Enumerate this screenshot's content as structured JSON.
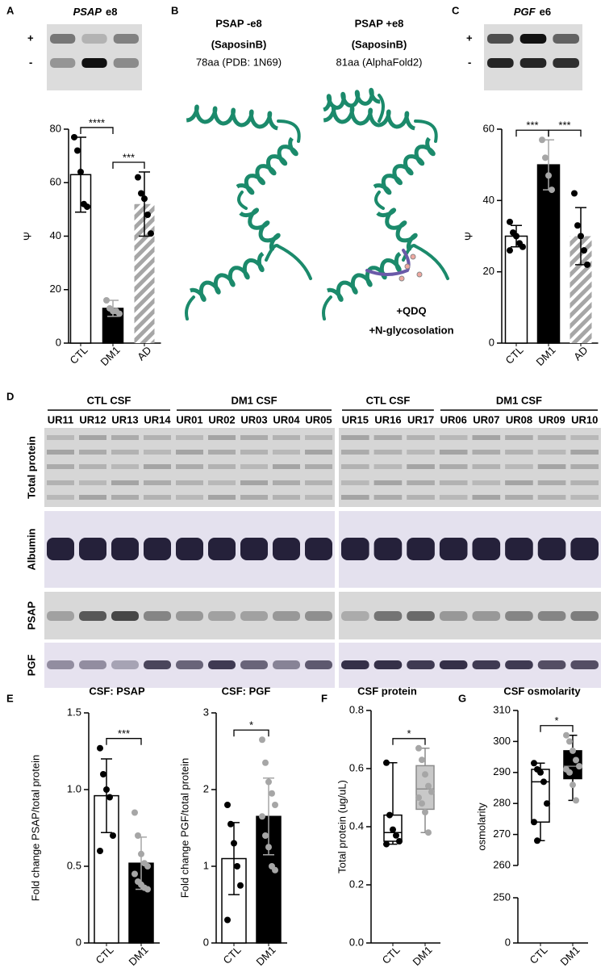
{
  "panel_letters": [
    "A",
    "B",
    "C",
    "D",
    "E",
    "F",
    "G"
  ],
  "gels": [
    {
      "gene": "PSAP",
      "exon": "e8",
      "labels": [
        "+",
        "-"
      ]
    },
    {
      "gene": "PGF",
      "exon": "e6",
      "labels": [
        "+",
        "-"
      ]
    }
  ],
  "structures": [
    {
      "title": "PSAP -e8",
      "subtitle": "(SaposinB)",
      "caption": "78aa (PDB: 1N69)"
    },
    {
      "title": "PSAP +e8",
      "subtitle": "(SaposinB)",
      "caption": "81aa (AlphaFold2)",
      "annotations": [
        "+QDQ",
        "+N-glycosolation"
      ]
    }
  ],
  "blot": {
    "groups": [
      {
        "label": "CTL CSF",
        "lanes": [
          "UR11",
          "UR12",
          "UR13",
          "UR14"
        ]
      },
      {
        "label": "DM1 CSF",
        "lanes": [
          "UR01",
          "UR02",
          "UR03",
          "UR04",
          "UR05"
        ]
      },
      {
        "label": "CTL CSF",
        "lanes": [
          "UR15",
          "UR16",
          "UR17"
        ]
      },
      {
        "label": "DM1 CSF",
        "lanes": [
          "UR06",
          "UR07",
          "UR08",
          "UR09",
          "UR10"
        ]
      }
    ],
    "rows": [
      "Total protein",
      "Albumin",
      "PSAP",
      "PGF"
    ]
  },
  "chart_data": [
    {
      "type": "bar",
      "categories": [
        "CTL",
        "DM1",
        "AD"
      ],
      "values": [
        63,
        13,
        52
      ],
      "errors": [
        14,
        3,
        12
      ],
      "points": [
        [
          77,
          72,
          64,
          52,
          51
        ],
        [
          16,
          13,
          12,
          12,
          11
        ],
        [
          62,
          56,
          54,
          48,
          41
        ]
      ],
      "colors": [
        "#ffffff",
        "#000000",
        "#a6a6a6"
      ],
      "hatched": [
        false,
        false,
        true
      ],
      "point_colors": [
        "#000000",
        "#a6a6a6",
        "#000000"
      ],
      "ylabel": "Ψ",
      "ylim": [
        0,
        80
      ],
      "yticks": [
        0,
        20,
        40,
        60,
        80
      ],
      "significance": [
        {
          "label": "****",
          "between": [
            "CTL",
            "DM1"
          ]
        },
        {
          "label": "***",
          "between": [
            "DM1",
            "AD"
          ]
        }
      ]
    },
    {
      "type": "bar",
      "categories": [
        "CTL",
        "DM1",
        "AD"
      ],
      "values": [
        30,
        50,
        30
      ],
      "errors": [
        3,
        7,
        8
      ],
      "points": [
        [
          34,
          31,
          30,
          28,
          27,
          26
        ],
        [
          57,
          52,
          47,
          43
        ],
        [
          42,
          33,
          30,
          26,
          22
        ]
      ],
      "colors": [
        "#ffffff",
        "#000000",
        "#a6a6a6"
      ],
      "hatched": [
        false,
        false,
        true
      ],
      "point_colors": [
        "#000000",
        "#a6a6a6",
        "#000000"
      ],
      "ylabel": "Ψ",
      "ylim": [
        0,
        60
      ],
      "yticks": [
        0,
        20,
        40,
        60
      ],
      "significance": [
        {
          "label": "***",
          "between": [
            "CTL",
            "DM1"
          ]
        },
        {
          "label": "***",
          "between": [
            "DM1",
            "AD"
          ]
        }
      ]
    },
    {
      "type": "bar",
      "title": "CSF: PSAP",
      "categories": [
        "CTL",
        "DM1"
      ],
      "values": [
        0.96,
        0.52
      ],
      "errors": [
        0.24,
        0.17
      ],
      "points": [
        [
          1.27,
          1.1,
          1.0,
          0.95,
          0.7,
          0.6
        ],
        [
          0.85,
          0.7,
          0.58,
          0.52,
          0.5,
          0.45,
          0.4,
          0.38,
          0.36,
          0.35
        ]
      ],
      "colors": [
        "#ffffff",
        "#000000"
      ],
      "hatched": [
        false,
        false
      ],
      "point_colors": [
        "#000000",
        "#a6a6a6"
      ],
      "ylabel": "Fold change PSAP/total protein",
      "ylim": [
        0,
        1.5
      ],
      "yticks": [
        0,
        0.5,
        {
          "value": 1,
          "label": "1.0"
        },
        1.5
      ],
      "significance": [
        {
          "label": "***",
          "between": [
            "CTL",
            "DM1"
          ]
        }
      ]
    },
    {
      "type": "bar",
      "title": "CSF: PGF",
      "categories": [
        "CTL",
        "DM1"
      ],
      "values": [
        1.1,
        1.65
      ],
      "errors": [
        0.47,
        0.5
      ],
      "points": [
        [
          1.8,
          1.55,
          1.3,
          1.0,
          0.75,
          0.3
        ],
        [
          2.65,
          2.35,
          2.1,
          1.95,
          1.8,
          1.65,
          1.4,
          1.25,
          1.0,
          0.95
        ]
      ],
      "colors": [
        "#ffffff",
        "#000000"
      ],
      "hatched": [
        false,
        false
      ],
      "point_colors": [
        "#000000",
        "#a6a6a6"
      ],
      "ylabel": "Fold change PGF/total protein",
      "ylim": [
        0,
        3
      ],
      "yticks": [
        0,
        1,
        2,
        3
      ],
      "significance": [
        {
          "label": "*",
          "between": [
            "CTL",
            "DM1"
          ]
        }
      ]
    },
    {
      "type": "box",
      "title": "CSF protein",
      "categories": [
        "CTL",
        "DM1"
      ],
      "stats": [
        {
          "min": 0.34,
          "q1": 0.35,
          "median": 0.38,
          "q3": 0.44,
          "max": 0.62
        },
        {
          "min": 0.38,
          "q1": 0.46,
          "median": 0.53,
          "q3": 0.61,
          "max": 0.67
        }
      ],
      "points": [
        [
          0.62,
          0.44,
          0.39,
          0.37,
          0.35,
          0.34
        ],
        [
          0.67,
          0.63,
          0.58,
          0.54,
          0.52,
          0.5,
          0.48,
          0.45,
          0.38
        ]
      ],
      "colors": [
        "#ffffff",
        "#c8c8c8"
      ],
      "edge_colors": [
        "#000000",
        "#8c8c8c"
      ],
      "point_colors": [
        "#000000",
        "#a6a6a6"
      ],
      "ylabel": "Total protein (ug/uL)",
      "ylim": [
        0,
        0.8
      ],
      "yticks": [
        {
          "value": 0,
          "label": "0.0"
        },
        0.2,
        0.4,
        0.6,
        0.8
      ],
      "significance": [
        {
          "label": "*",
          "between": [
            "CTL",
            "DM1"
          ]
        }
      ]
    },
    {
      "type": "box",
      "title": "CSF osmolarity",
      "categories": [
        "CTL",
        "DM1"
      ],
      "stats": [
        {
          "min": 268,
          "q1": 274,
          "median": 287,
          "q3": 291,
          "max": 293
        },
        {
          "min": 281,
          "q1": 288,
          "median": 292,
          "q3": 297,
          "max": 302
        }
      ],
      "points": [
        [
          293,
          291,
          290,
          287,
          280,
          274,
          268
        ],
        [
          302,
          300,
          297,
          294,
          292,
          291,
          290,
          286,
          281
        ]
      ],
      "colors": [
        "#ffffff",
        "#000000"
      ],
      "edge_colors": [
        "#000000",
        "#000000"
      ],
      "point_colors": [
        "#000000",
        "#a6a6a6"
      ],
      "ylabel": "osmolarity",
      "ylim": [
        260,
        310
      ],
      "yticks": [
        260,
        270,
        280,
        290,
        300,
        310
      ],
      "axis_break": {
        "ylim": [
          0,
          250
        ],
        "yticks": [
          0,
          250
        ]
      },
      "significance": [
        {
          "label": "*",
          "between": [
            "CTL",
            "DM1"
          ]
        }
      ]
    }
  ]
}
